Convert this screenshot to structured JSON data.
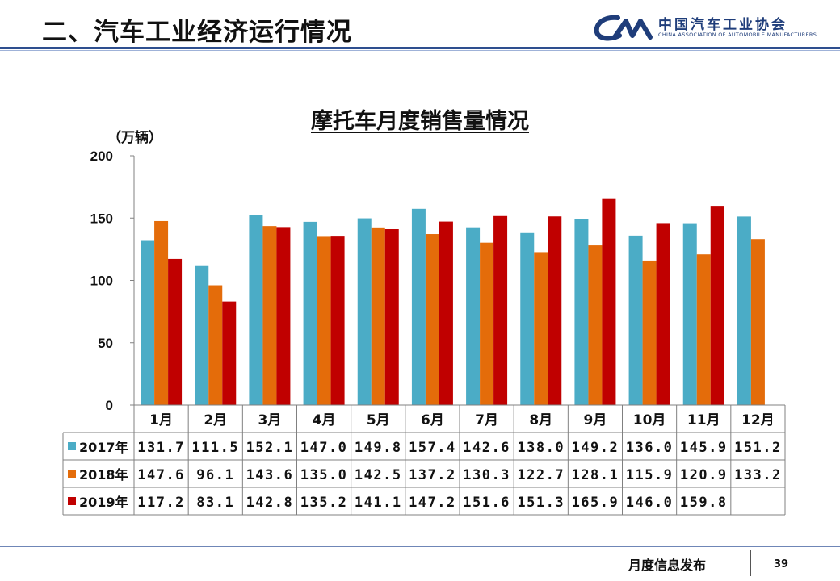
{
  "header": {
    "title": "二、汽车工业经济运行情况"
  },
  "logo": {
    "mark": "CAM",
    "cn": "中国汽车工业协会",
    "en": "CHINA ASSOCIATION OF AUTOMOBILE MANUFACTURERS"
  },
  "footer": {
    "text": "月度信息发布",
    "page": "39"
  },
  "colors": {
    "s2017": "#4bacc6",
    "s2018": "#e46c0a",
    "s2019": "#c00000",
    "axis": "#808080",
    "brand": "#1f3d7a"
  },
  "chart_data": {
    "type": "bar",
    "title": "摩托车月度销售量情况",
    "ylabel": "（万辆）",
    "ylim": [
      0,
      200
    ],
    "yticks": [
      0,
      50,
      100,
      150,
      200
    ],
    "grid": false,
    "legend": "table-left",
    "categories": [
      "1月",
      "2月",
      "3月",
      "4月",
      "5月",
      "6月",
      "7月",
      "8月",
      "9月",
      "10月",
      "11月",
      "12月"
    ],
    "series": [
      {
        "name": "2017年",
        "values": [
          131.7,
          111.5,
          152.1,
          147.0,
          149.8,
          157.4,
          142.6,
          138.0,
          149.2,
          136.0,
          145.9,
          151.2
        ]
      },
      {
        "name": "2018年",
        "values": [
          147.6,
          96.1,
          143.6,
          135.0,
          142.5,
          137.2,
          130.3,
          122.7,
          128.1,
          115.9,
          120.9,
          133.2
        ]
      },
      {
        "name": "2019年",
        "values": [
          117.2,
          83.1,
          142.8,
          135.2,
          141.1,
          147.2,
          151.6,
          151.3,
          165.9,
          146.0,
          159.8,
          null
        ]
      }
    ],
    "table_labels": [
      [
        "131.7",
        "111.5",
        "152.1",
        "147.0",
        "149.8",
        "157.4",
        "142.6",
        "138.0",
        "149.2",
        "136.0",
        "145.9",
        "151.2"
      ],
      [
        "147.6",
        "96.1",
        "143.6",
        "135.0",
        "142.5",
        "137.2",
        "130.3",
        "122.7",
        "128.1",
        "115.9",
        "120.9",
        "133.2"
      ],
      [
        "117.2",
        "83.1",
        "142.8",
        "135.2",
        "141.1",
        "147.2",
        "151.6",
        "151.3",
        "165.9",
        "146.0",
        "159.8",
        ""
      ]
    ]
  }
}
